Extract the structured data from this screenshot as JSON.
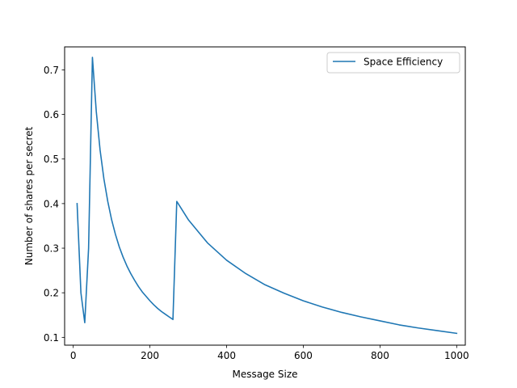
{
  "chart_data": {
    "type": "line",
    "title": "",
    "xlabel": "Message Size",
    "ylabel": "Number of shares per secret",
    "xlim": [
      -22.5,
      1022.5
    ],
    "ylim": [
      0.0825,
      0.7515
    ],
    "xticks": [
      0,
      200,
      400,
      600,
      800,
      1000
    ],
    "xtick_labels": [
      "0",
      "200",
      "400",
      "600",
      "800",
      "1000"
    ],
    "yticks": [
      0.1,
      0.2,
      0.3,
      0.4,
      0.5,
      0.6,
      0.7
    ],
    "ytick_labels": [
      "0.1",
      "0.2",
      "0.3",
      "0.4",
      "0.5",
      "0.6",
      "0.7"
    ],
    "grid": false,
    "legend_position": "top-right",
    "series": [
      {
        "name": "Space Efficiency",
        "color": "#1f77b4",
        "points": [
          [
            10,
            0.4
          ],
          [
            20,
            0.2
          ],
          [
            30,
            0.133
          ],
          [
            40,
            0.3
          ],
          [
            50,
            0.728
          ],
          [
            60,
            0.607
          ],
          [
            70,
            0.52
          ],
          [
            80,
            0.455
          ],
          [
            90,
            0.405
          ],
          [
            100,
            0.364
          ],
          [
            110,
            0.331
          ],
          [
            120,
            0.303
          ],
          [
            130,
            0.28
          ],
          [
            140,
            0.26
          ],
          [
            150,
            0.243
          ],
          [
            160,
            0.228
          ],
          [
            170,
            0.214
          ],
          [
            180,
            0.202
          ],
          [
            190,
            0.192
          ],
          [
            200,
            0.182
          ],
          [
            210,
            0.173
          ],
          [
            220,
            0.165
          ],
          [
            230,
            0.158
          ],
          [
            240,
            0.152
          ],
          [
            250,
            0.146
          ],
          [
            260,
            0.14
          ],
          [
            270,
            0.405
          ],
          [
            300,
            0.364
          ],
          [
            350,
            0.312
          ],
          [
            400,
            0.273
          ],
          [
            450,
            0.243
          ],
          [
            500,
            0.218
          ],
          [
            550,
            0.199
          ],
          [
            600,
            0.182
          ],
          [
            650,
            0.168
          ],
          [
            700,
            0.156
          ],
          [
            750,
            0.146
          ],
          [
            800,
            0.137
          ],
          [
            850,
            0.128
          ],
          [
            900,
            0.121
          ],
          [
            950,
            0.115
          ],
          [
            1000,
            0.109
          ]
        ]
      }
    ]
  }
}
